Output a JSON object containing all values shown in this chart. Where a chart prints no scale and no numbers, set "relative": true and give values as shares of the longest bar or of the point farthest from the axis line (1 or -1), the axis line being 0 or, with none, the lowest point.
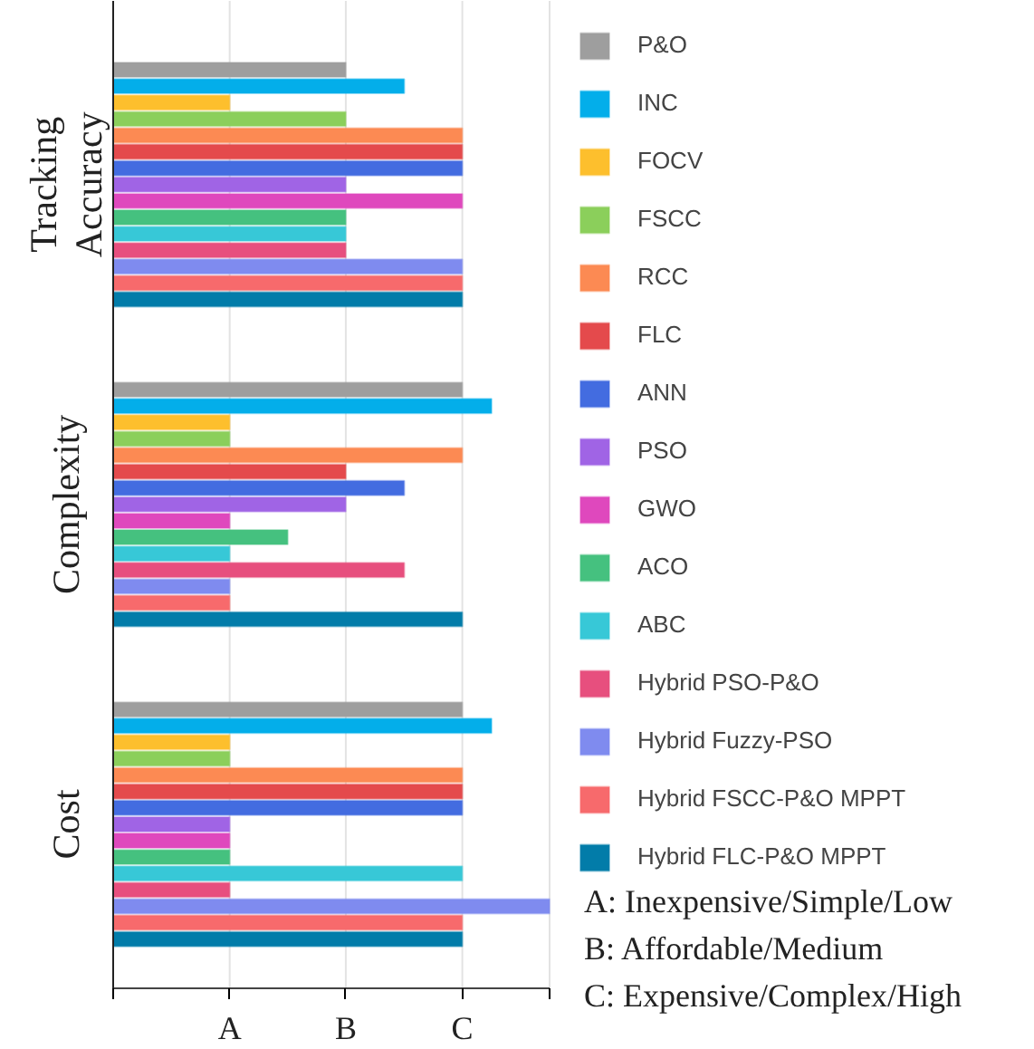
{
  "chart_data": {
    "type": "bar",
    "orientation": "horizontal",
    "relative": true,
    "categories": [
      "Tracking\nAccuracy",
      "Complexity",
      "Cost"
    ],
    "legend": "right",
    "ref_lines": [
      {
        "axis": "x",
        "value": 0.267,
        "color": "#e3e3e3"
      },
      {
        "axis": "x",
        "value": 0.533,
        "color": "#e3e3e3"
      },
      {
        "axis": "x",
        "value": 0.8,
        "color": "#e3e3e3"
      },
      {
        "axis": "x",
        "value": 1,
        "color": "#e3e3e3"
      }
    ],
    "series": [
      {
        "name": "P&O",
        "color": "#9e9e9e",
        "values": [
          0.533,
          0.8,
          0.8
        ]
      },
      {
        "name": "INC",
        "color": "#03aeea",
        "values": [
          0.667,
          0.867,
          0.867
        ]
      },
      {
        "name": "FOCV",
        "color": "#fdbf2d",
        "values": [
          0.267,
          0.267,
          0.267
        ]
      },
      {
        "name": "FSCC",
        "color": "#8bcf5b",
        "values": [
          0.533,
          0.267,
          0.267
        ]
      },
      {
        "name": "RCC",
        "color": "#fc8a53",
        "values": [
          0.8,
          0.8,
          0.8
        ]
      },
      {
        "name": "FLC",
        "color": "#e44a4c",
        "values": [
          0.8,
          0.533,
          0.8
        ]
      },
      {
        "name": "ANN",
        "color": "#436ce0",
        "values": [
          0.8,
          0.667,
          0.8
        ]
      },
      {
        "name": "PSO",
        "color": "#a064e5",
        "values": [
          0.533,
          0.533,
          0.267
        ]
      },
      {
        "name": "GWO",
        "color": "#df48bd",
        "values": [
          0.8,
          0.267,
          0.267
        ]
      },
      {
        "name": "ACO",
        "color": "#45c17f",
        "values": [
          0.533,
          0.4,
          0.267
        ]
      },
      {
        "name": "ABC",
        "color": "#37c8d7",
        "values": [
          0.533,
          0.267,
          0.8
        ]
      },
      {
        "name": "Hybrid PSO-P&O",
        "color": "#e74f7e",
        "values": [
          0.533,
          0.667,
          0.267
        ]
      },
      {
        "name": "Hybrid Fuzzy-PSO",
        "color": "#7f8bef",
        "values": [
          0.8,
          0.267,
          1
        ]
      },
      {
        "name": "Hybrid FSCC-P&O MPPT",
        "color": "#f76a6c",
        "values": [
          0.8,
          0.267,
          0.8
        ]
      },
      {
        "name": "Hybrid FLC-P&O MPPT",
        "color": "#027ca9",
        "values": [
          0.8,
          0.8,
          0.8
        ]
      }
    ],
    "annotations": [
      {
        "text": "A",
        "x": 0.267
      },
      {
        "text": "B",
        "x": 0.533
      },
      {
        "text": "C",
        "x": 0.8
      },
      "A: Inexpensive/Simple/Low",
      "B: Affordable/Medium",
      "C: Expensive/Complex/High"
    ]
  }
}
